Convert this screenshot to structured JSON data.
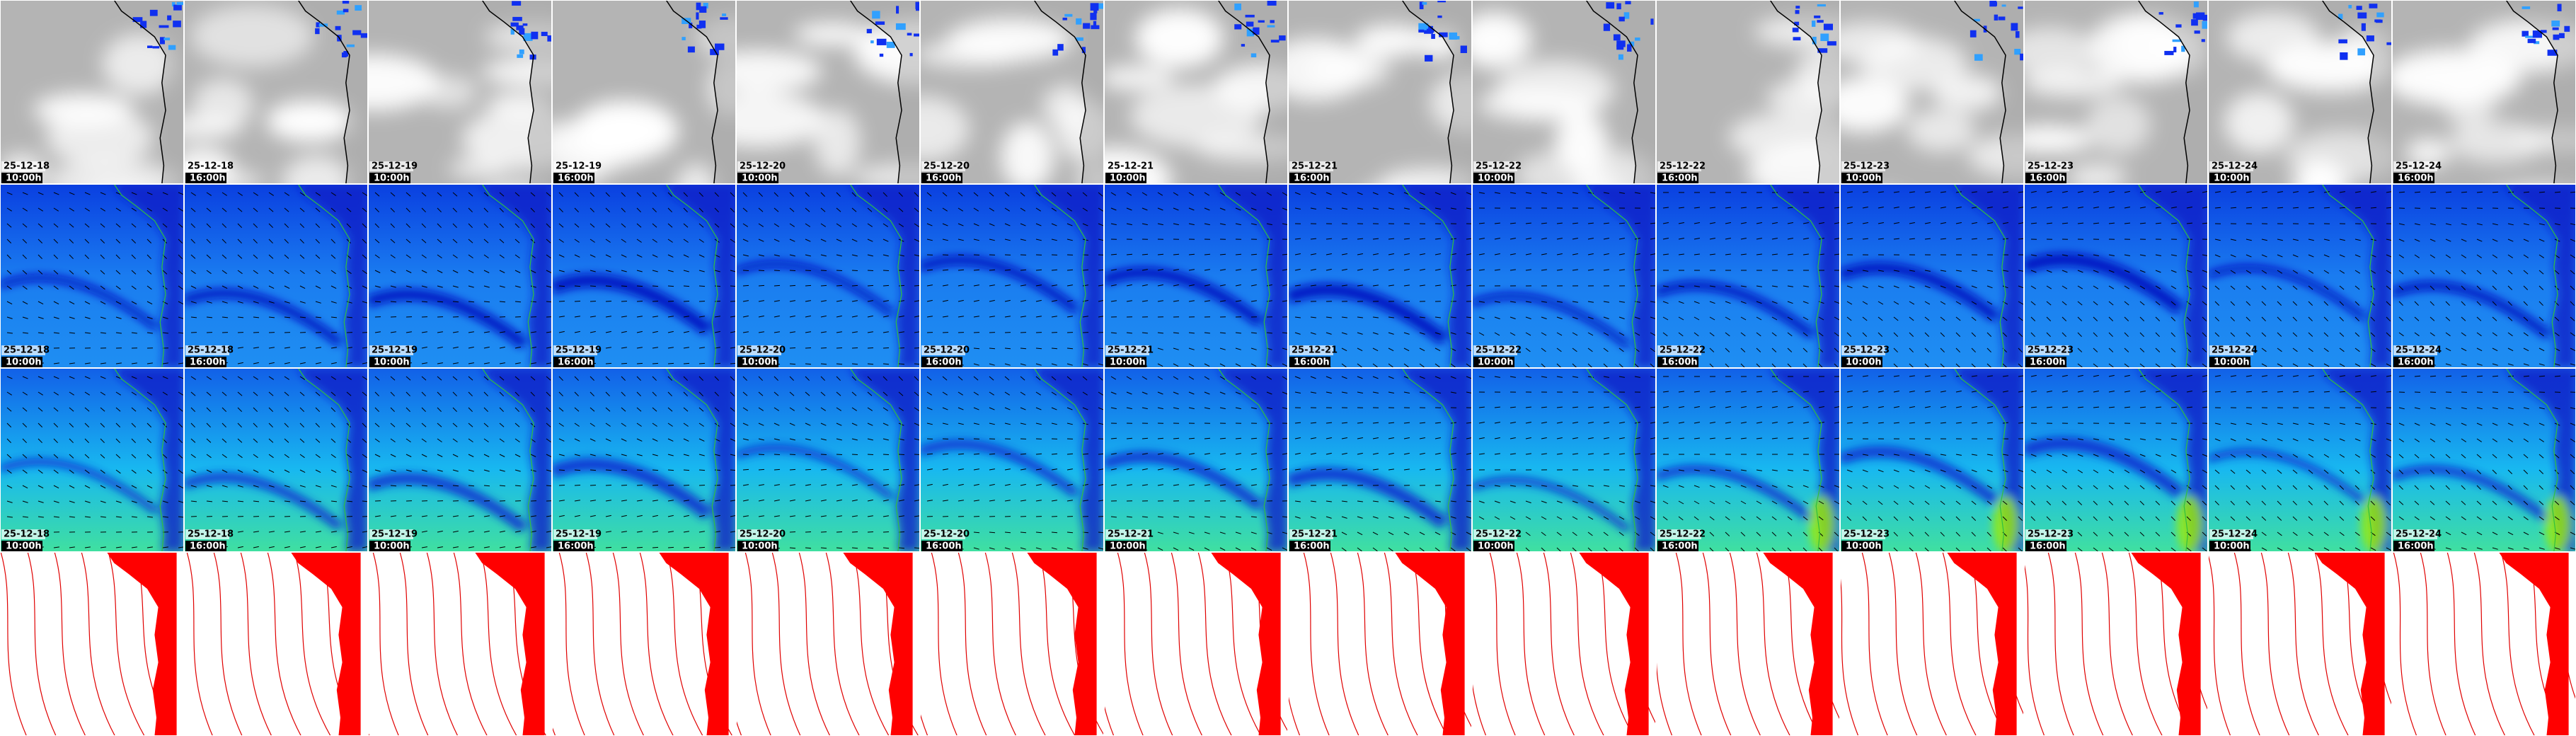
{
  "frames": [
    {
      "date": "25-12-18",
      "time": "10:00h"
    },
    {
      "date": "25-12-18",
      "time": "16:00h"
    },
    {
      "date": "25-12-19",
      "time": "10:00h"
    },
    {
      "date": "25-12-19",
      "time": "16:00h"
    },
    {
      "date": "25-12-20",
      "time": "10:00h"
    },
    {
      "date": "25-12-20",
      "time": "16:00h"
    },
    {
      "date": "25-12-21",
      "time": "10:00h"
    },
    {
      "date": "25-12-21",
      "time": "16:00h"
    },
    {
      "date": "25-12-22",
      "time": "10:00h"
    },
    {
      "date": "25-12-22",
      "time": "16:00h"
    },
    {
      "date": "25-12-23",
      "time": "10:00h"
    },
    {
      "date": "25-12-23",
      "time": "16:00h"
    },
    {
      "date": "25-12-24",
      "time": "10:00h"
    },
    {
      "date": "25-12-24",
      "time": "16:00h"
    }
  ]
}
